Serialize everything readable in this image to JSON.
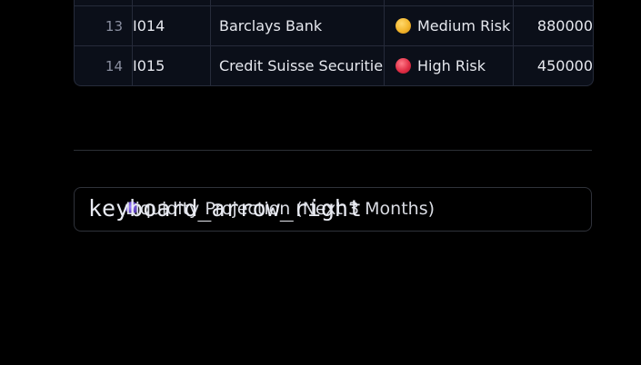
{
  "table": {
    "rows": [
      {
        "index": "13",
        "id": "I014",
        "name": "Barclays Bank",
        "risk": "Medium Risk",
        "risk_level": "medium",
        "amount": "880000"
      },
      {
        "index": "14",
        "id": "I015",
        "name": "Credit Suisse Securities",
        "risk": "High Risk",
        "risk_level": "high",
        "amount": "450000"
      }
    ]
  },
  "expander": {
    "icon_text": "keyboard_arrow_right",
    "title": "Liquidity Projection (Next 3 Months)"
  },
  "colors": {
    "background": "#000000",
    "table_bg": "#0b0f19",
    "medium_risk": "#f3b52c",
    "high_risk": "#e23047"
  }
}
